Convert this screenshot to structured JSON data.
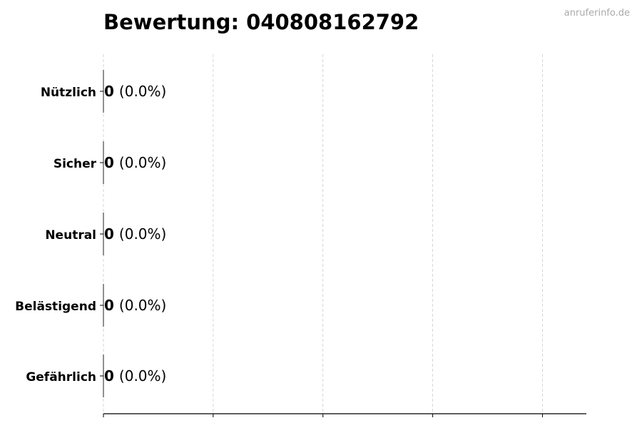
{
  "watermark": "anruferinfo.de",
  "chart_data": {
    "type": "bar",
    "orientation": "horizontal",
    "title": "Bewertung: 040808162792",
    "categories": [
      "Nützlich",
      "Sicher",
      "Neutral",
      "Belästigend",
      "Gefährlich"
    ],
    "values": [
      0,
      0,
      0,
      0,
      0
    ],
    "data_labels": [
      {
        "count": "0",
        "percent": "(0.0%)"
      },
      {
        "count": "0",
        "percent": "(0.0%)"
      },
      {
        "count": "0",
        "percent": "(0.0%)"
      },
      {
        "count": "0",
        "percent": "(0.0%)"
      },
      {
        "count": "0",
        "percent": "(0.0%)"
      }
    ],
    "xlim": [
      0,
      4.4
    ],
    "xticks": [
      0,
      1,
      2,
      3,
      4
    ],
    "xtick_labels_shown": false,
    "grid": "vertical dashed",
    "colors": {
      "grid": "#cccccc",
      "axis": "#000000",
      "watermark": "#aaaaaa"
    }
  }
}
